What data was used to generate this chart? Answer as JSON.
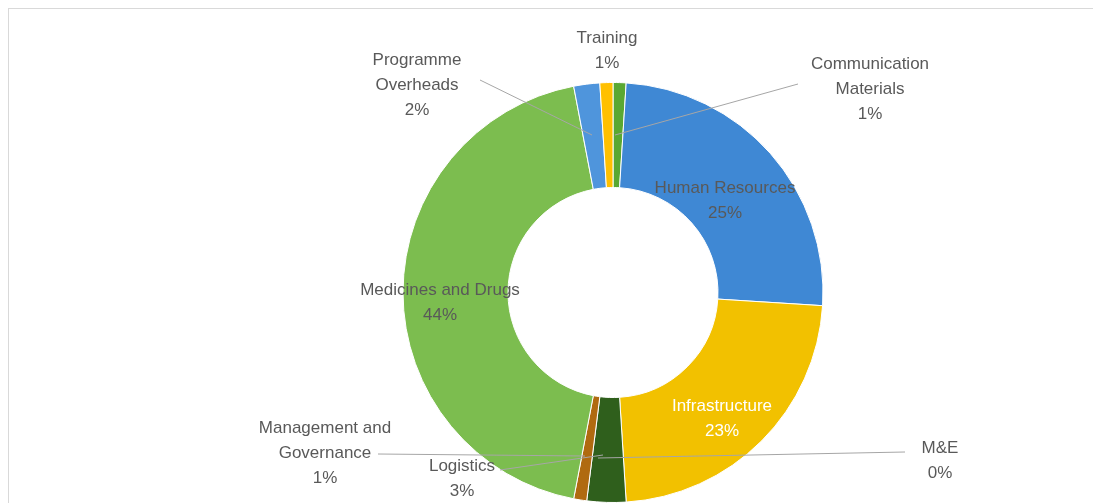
{
  "chart_data": {
    "type": "donut",
    "categories": [
      "Communication Materials",
      "Human Resources",
      "Infrastructure",
      "Logistics",
      "M&E",
      "Management and Governance",
      "Medicines and Drugs",
      "Programme Overheads",
      "Training"
    ],
    "values": [
      1,
      25,
      23,
      3,
      0,
      1,
      44,
      2,
      1
    ],
    "colors": [
      "#5aa832",
      "#3f88d4",
      "#f2c100",
      "#2f5f1c",
      "#1f4e8c",
      "#b06a10",
      "#7cbd4f",
      "#4f95dc",
      "#ffc000"
    ],
    "value_labels": [
      "1%",
      "25%",
      "23%",
      "3%",
      "0%",
      "1%",
      "44%",
      "2%",
      "1%"
    ],
    "legend": false
  }
}
